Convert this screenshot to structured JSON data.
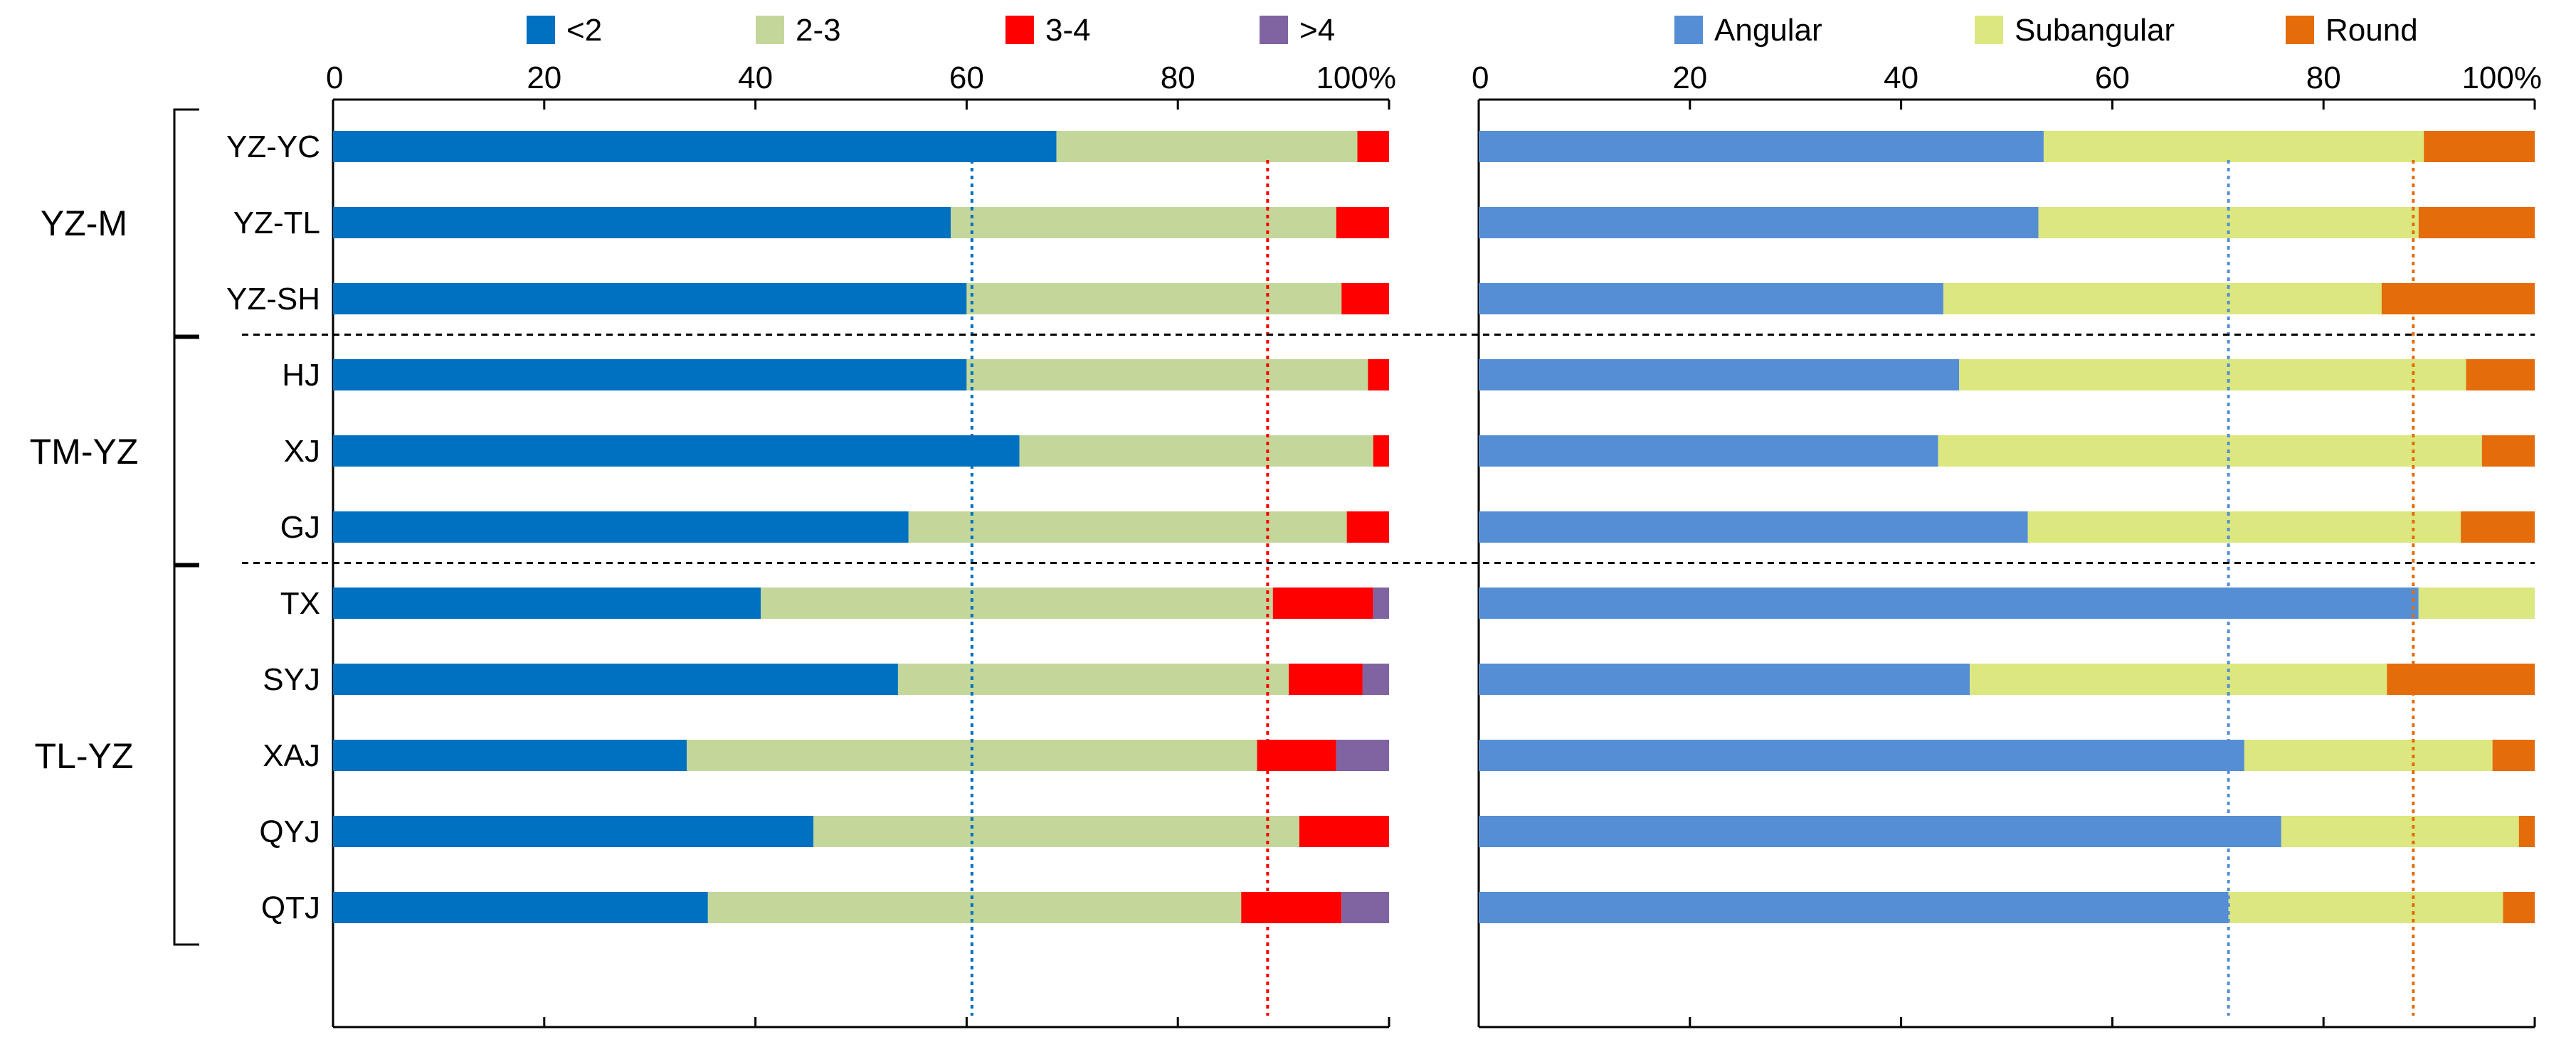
{
  "chart_data": {
    "type": "bar",
    "orientation": "horizontal",
    "stacked": true,
    "categories": [
      "YZ-YC",
      "YZ-TL",
      "YZ-SH",
      "HJ",
      "XJ",
      "GJ",
      "TX",
      "SYJ",
      "XAJ",
      "QYJ",
      "QTJ"
    ],
    "groups": [
      {
        "label": "YZ-M",
        "categories": [
          "YZ-YC",
          "YZ-TL",
          "YZ-SH"
        ]
      },
      {
        "label": "TM-YZ",
        "categories": [
          "HJ",
          "XJ",
          "GJ"
        ]
      },
      {
        "label": "TL-YZ",
        "categories": [
          "TX",
          "SYJ",
          "XAJ",
          "QYJ",
          "QTJ"
        ]
      }
    ],
    "x_ticks": [
      "0",
      "20",
      "40",
      "60",
      "80",
      "100%"
    ],
    "xlim": [
      0,
      100
    ],
    "legend_position": "top",
    "panels": [
      {
        "series": [
          {
            "name": "<2",
            "color": "#0070c0",
            "values": [
              68.5,
              58.5,
              60,
              60,
              65,
              54.5,
              40.5,
              53.5,
              33.5,
              45.5,
              35.5
            ]
          },
          {
            "name": "2-3",
            "color": "#c4d79b",
            "values": [
              28.5,
              36.5,
              35.5,
              38,
              33.5,
              41.5,
              48.5,
              37,
              54,
              46,
              50.5
            ]
          },
          {
            "name": "3-4",
            "color": "#ff0000",
            "values": [
              3,
              5,
              4.5,
              2,
              1.5,
              4,
              9.5,
              7,
              7.5,
              8.5,
              9.5
            ]
          },
          {
            "name": ">4",
            "color": "#8064a2",
            "values": [
              0,
              0,
              0,
              0,
              0,
              0,
              1.5,
              2.5,
              5,
              0,
              4.5
            ]
          }
        ],
        "reference_lines": [
          {
            "color": "#0070c0",
            "x": 60.5
          },
          {
            "color": "#ff0000",
            "x": 88.5
          }
        ]
      },
      {
        "series": [
          {
            "name": "Angular",
            "color": "#558ed5",
            "values": [
              53.5,
              53,
              44,
              45.5,
              43.5,
              52,
              89,
              46.5,
              72.5,
              76,
              71
            ]
          },
          {
            "name": "Subangular",
            "color": "#dce77f",
            "values": [
              36,
              36,
              41.5,
              48,
              51.5,
              41,
              11,
              39.5,
              23.5,
              22.5,
              26
            ]
          },
          {
            "name": "Round",
            "color": "#e46c0a",
            "values": [
              10.5,
              11,
              14.5,
              6.5,
              5,
              7,
              0,
              14,
              4,
              1.5,
              3
            ]
          }
        ],
        "reference_lines": [
          {
            "color": "#558ed5",
            "x": 71
          },
          {
            "color": "#e46c0a",
            "x": 88.5
          }
        ]
      }
    ]
  }
}
